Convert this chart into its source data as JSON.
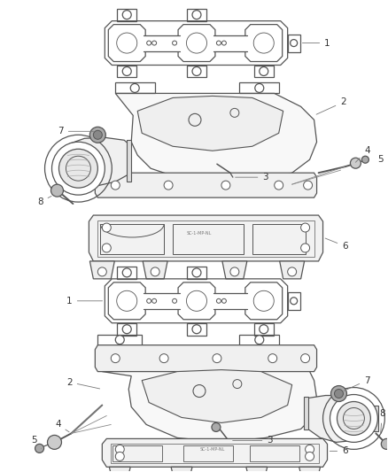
{
  "bg_color": "#ffffff",
  "line_color": "#555555",
  "label_color": "#333333",
  "lw": 0.9,
  "fig_width": 4.38,
  "fig_height": 5.33,
  "dpi": 100
}
